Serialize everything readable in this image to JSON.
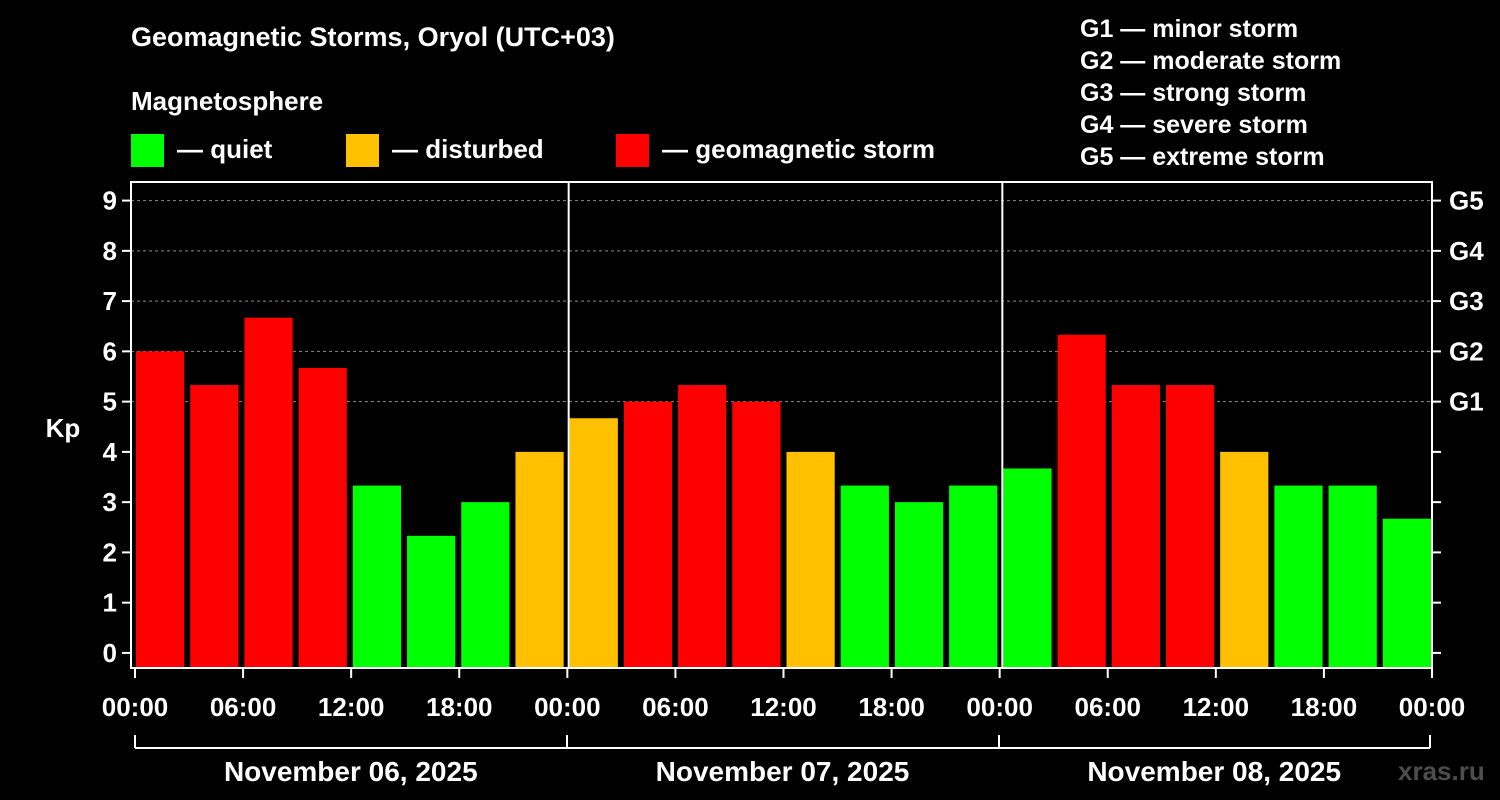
{
  "title": "Geomagnetic Storms, Oryol (UTC+03)",
  "legend": {
    "heading": "Magnetosphere",
    "items": [
      {
        "label": "— quiet",
        "color": "#00ff00"
      },
      {
        "label": "— disturbed",
        "color": "#ffc000"
      },
      {
        "label": "— geomagnetic storm",
        "color": "#ff0000"
      }
    ]
  },
  "storm_scale": [
    "G1 — minor storm",
    "G2 — moderate storm",
    "G3 — strong storm",
    "G4 — severe storm",
    "G5 — extreme storm"
  ],
  "watermark": "xras.ru",
  "chart_data": {
    "type": "bar",
    "ylabel": "Kp",
    "ylim": [
      -0.3,
      9.37
    ],
    "yticks": [
      "0",
      "1",
      "2",
      "3",
      "4",
      "5",
      "6",
      "7",
      "8",
      "9"
    ],
    "right_ticks": [
      {
        "value": 5,
        "label": "G1"
      },
      {
        "value": 6,
        "label": "G2"
      },
      {
        "value": 7,
        "label": "G3"
      },
      {
        "value": 8,
        "label": "G4"
      },
      {
        "value": 9,
        "label": "G5"
      }
    ],
    "xtick_labels": [
      "00:00",
      "06:00",
      "12:00",
      "18:00",
      "00:00",
      "06:00",
      "12:00",
      "18:00",
      "00:00",
      "06:00",
      "12:00",
      "18:00",
      "00:00"
    ],
    "days": [
      "November 06, 2025",
      "November 07, 2025",
      "November 08, 2025"
    ],
    "grid": "dashed at 5, 6, 7, 8, 9",
    "values": [
      6.0,
      5.33,
      6.67,
      5.67,
      3.33,
      2.33,
      3.0,
      4.0,
      4.67,
      5.0,
      5.33,
      5.0,
      4.0,
      3.33,
      3.0,
      3.33,
      3.67,
      6.33,
      5.33,
      5.33,
      4.0,
      3.33,
      3.33,
      2.67
    ],
    "colors": {
      "quiet": "#00ff00",
      "disturbed": "#ffc000",
      "storm": "#ff0000"
    }
  }
}
